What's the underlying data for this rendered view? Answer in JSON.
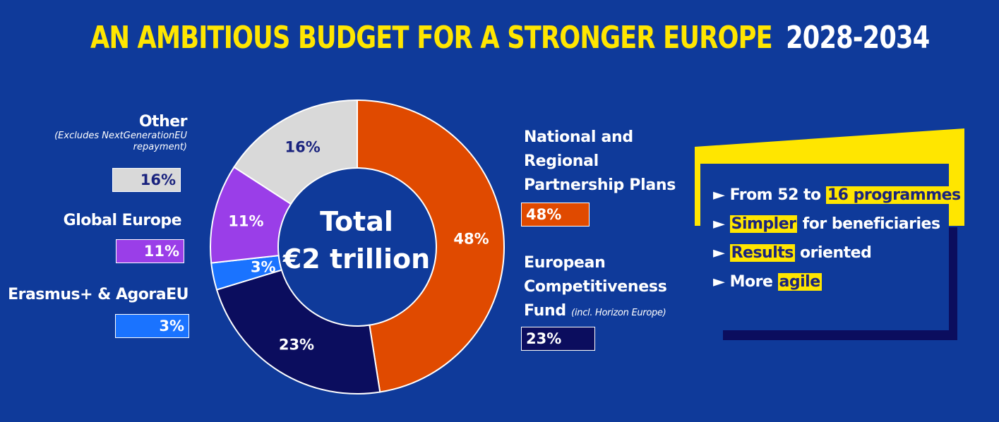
{
  "header": {
    "title": "AN AMBITIOUS BUDGET FOR A STRONGER EUROPE",
    "years": "2028-2034"
  },
  "center": {
    "line1": "Total",
    "line2": "€2 trillion"
  },
  "chart_data": {
    "type": "pie",
    "donut": true,
    "title": "AN AMBITIOUS BUDGET FOR A STRONGER EUROPE 2028-2034",
    "unit": "%",
    "slices": [
      {
        "name": "National and Regional Partnership Plans",
        "value": 48,
        "label": "48%",
        "color": "#e04a00",
        "text_color": "#ffffff"
      },
      {
        "name": "European Competitiveness Fund",
        "value": 23,
        "label": "23%",
        "color": "#0b0d5e",
        "text_color": "#ffffff"
      },
      {
        "name": "Erasmus+ & AgoraEU",
        "value": 3,
        "label": "3%",
        "color": "#1a73ff",
        "text_color": "#ffffff"
      },
      {
        "name": "Global Europe",
        "value": 11,
        "label": "11%",
        "color": "#9a3ee8",
        "text_color": "#ffffff"
      },
      {
        "name": "Other",
        "value": 16,
        "label": "16%",
        "color": "#d9d9d9",
        "text_color": "#1a237e"
      }
    ]
  },
  "legend": {
    "other": {
      "label": "Other",
      "note1": "(Excludes NextGenerationEU",
      "note2": "repayment)",
      "value": "16%"
    },
    "global": {
      "label": "Global Europe",
      "value": "11%"
    },
    "erasmus": {
      "label": "Erasmus+ & AgoraEU",
      "value": "3%"
    },
    "national": {
      "line1": "National and",
      "line2": "Regional",
      "line3": "Partnership Plans",
      "value": "48%"
    },
    "ecf": {
      "line1": "European",
      "line2": "Competitiveness",
      "line3": "Fund",
      "note": "(incl. Horizon Europe)",
      "value": "23%"
    }
  },
  "panel": {
    "arrow": "►",
    "b1_pre": "From 52 to",
    "b1_hl": "16 programmes",
    "b2_hl": "Simpler",
    "b2_post": "for beneficiaries",
    "b3_hl": "Results",
    "b3_post": "oriented",
    "b4_pre": "More",
    "b4_hl": "agile"
  },
  "colors": {
    "background": "#0f3a9a",
    "accent_yellow": "#ffe600",
    "shadow_navy": "#0b0d5e"
  }
}
